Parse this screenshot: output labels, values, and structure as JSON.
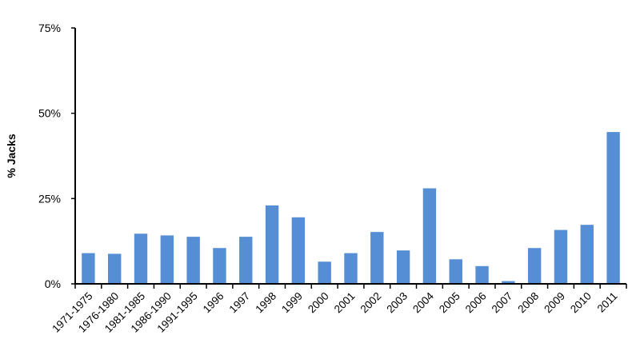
{
  "chart_data": {
    "type": "bar",
    "title": "",
    "xlabel": "",
    "ylabel": "% Jacks",
    "ylim": [
      0,
      75
    ],
    "yticks": [
      "0%",
      "25%",
      "50%",
      "75%"
    ],
    "ytick_values": [
      0,
      25,
      50,
      75
    ],
    "grid": false,
    "bar_color": "#558ed5",
    "categories": [
      "1971-1975",
      "1976-1980",
      "1981-1985",
      "1986-1990",
      "1991-1995",
      "1996",
      "1997",
      "1998",
      "1999",
      "2000",
      "2001",
      "2002",
      "2003",
      "2004",
      "2005",
      "2006",
      "2007",
      "2008",
      "2009",
      "2010",
      "2011"
    ],
    "values": [
      9.0,
      8.8,
      14.7,
      14.2,
      13.8,
      10.5,
      13.8,
      23.0,
      19.5,
      6.5,
      9.0,
      15.2,
      9.8,
      28.0,
      7.2,
      5.2,
      0.8,
      10.5,
      15.8,
      17.3,
      44.5
    ]
  }
}
